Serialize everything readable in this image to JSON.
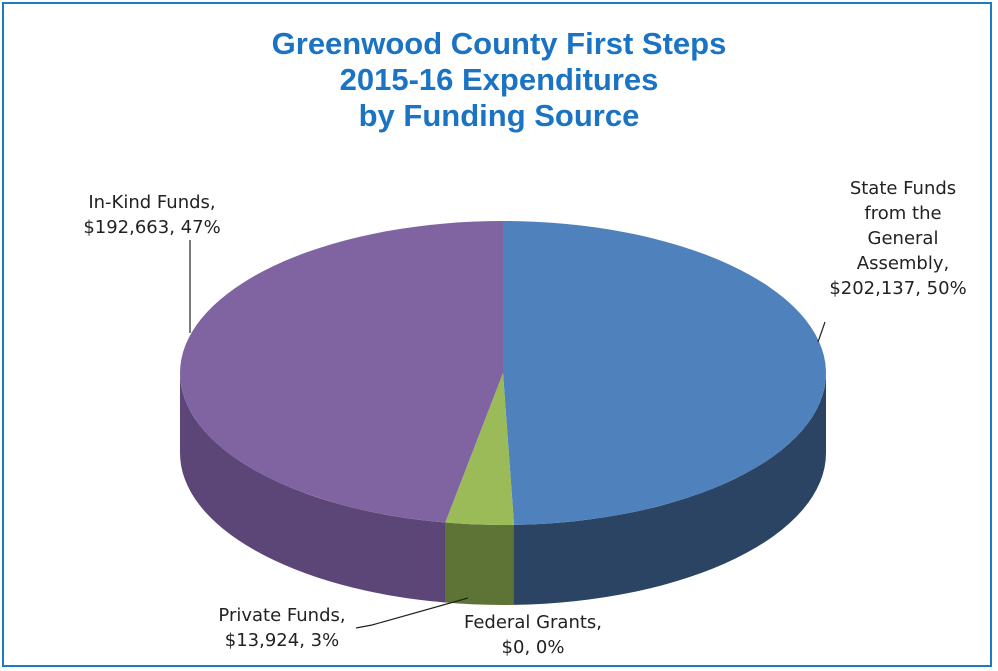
{
  "chart_data": {
    "type": "pie",
    "style": "3d",
    "title": [
      "Greenwood County First Steps",
      "2015-16 Expenditures",
      "by Funding Source"
    ],
    "categories": [
      "State Funds from the General Assembly",
      "Federal Grants",
      "Private Funds",
      "In-Kind Funds"
    ],
    "values": [
      202137,
      0,
      13924,
      192663
    ],
    "percents": [
      50,
      0,
      3,
      47
    ],
    "data_labels": [
      [
        "State Funds",
        "from the",
        "General",
        "Assembly,",
        "$202,137, 50%"
      ],
      [
        "Federal Grants,",
        "$0, 0%"
      ],
      [
        "Private Funds,",
        "$13,924, 3%"
      ],
      [
        "In-Kind Funds,",
        "$192,663, 47%"
      ]
    ],
    "colors": {
      "top": [
        "#4f81bd",
        "#4f81bd",
        "#9bbb59",
        "#8064a2"
      ],
      "side": [
        "#2b4463",
        "#2b4463",
        "#5e7437",
        "#5c4677"
      ],
      "title": "#1a73c3",
      "border": "#1f7ac4"
    },
    "legend": "none"
  }
}
